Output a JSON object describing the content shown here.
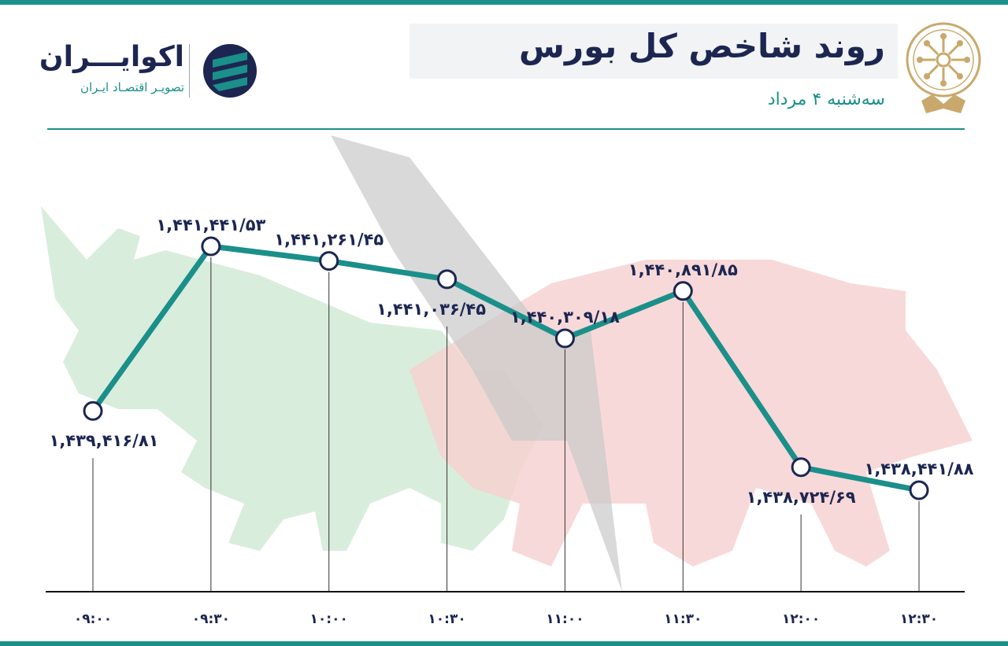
{
  "header": {
    "title": "روند شاخص کل بورس",
    "subtitle": "سه‌شنبه ۴ مرداد"
  },
  "brand": {
    "name": "اکوایـــران",
    "tagline": "تصویـر اقتصـاد ایـران"
  },
  "colors": {
    "line": "#1b8f8a",
    "text": "#1c2651",
    "bull": "#b9ddc0",
    "bear": "#f2c0c0",
    "arrow": "#bdbdbd"
  },
  "chart_data": {
    "type": "line",
    "categories": [
      "۰۹:۰۰",
      "۰۹:۳۰",
      "۱۰:۰۰",
      "۱۰:۳۰",
      "۱۱:۰۰",
      "۱۱:۳۰",
      "۱۲:۰۰",
      "۱۲:۳۰"
    ],
    "values": [
      1439416.81,
      1441441.53,
      1441261.45,
      1441036.45,
      1440309.18,
      1440891.85,
      1438724.69,
      1438441.88
    ],
    "value_labels": [
      "۱,۴۳۹,۴۱۶/۸۱",
      "۱,۴۴۱,۴۴۱/۵۳",
      "۱,۴۴۱,۲۶۱/۴۵",
      "۱,۴۴۱,۰۳۶/۴۵",
      "۱,۴۴۰,۳۰۹/۱۸",
      "۱,۴۴۰,۸۹۱/۸۵",
      "۱,۴۳۸,۷۲۴/۶۹",
      "۱,۴۳۸,۴۴۱/۸۸"
    ],
    "label_position": [
      "below",
      "above",
      "above",
      "below",
      "above",
      "above",
      "below",
      "above"
    ],
    "title": "روند شاخص کل بورس",
    "grid": false,
    "legend": "none"
  }
}
